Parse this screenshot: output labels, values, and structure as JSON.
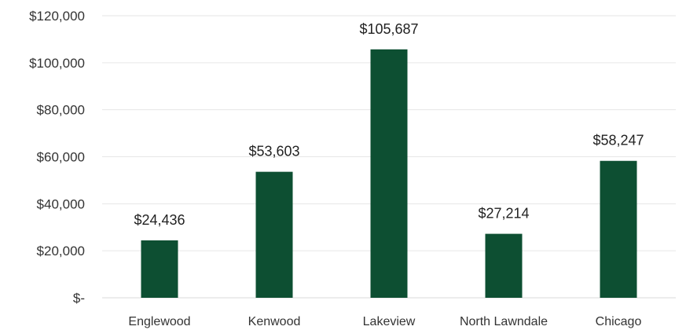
{
  "chart_data": {
    "type": "bar",
    "categories": [
      "Englewood",
      "Kenwood",
      "Lakeview",
      "North Lawndale",
      "Chicago"
    ],
    "values": [
      24436,
      53603,
      105687,
      27214,
      58247
    ],
    "data_labels": [
      "$24,436",
      "$53,603",
      "$105,687",
      "$27,214",
      "$58,247"
    ],
    "ylim": [
      0,
      120000
    ],
    "yticks": [
      0,
      20000,
      40000,
      60000,
      80000,
      100000,
      120000
    ],
    "ytick_labels": [
      "$-",
      "$20,000",
      "$40,000",
      "$60,000",
      "$80,000",
      "$100,000",
      "$120,000"
    ],
    "grid": true,
    "legend": "none",
    "bar_color": "#0d4f32",
    "title": "",
    "xlabel": "",
    "ylabel": ""
  }
}
